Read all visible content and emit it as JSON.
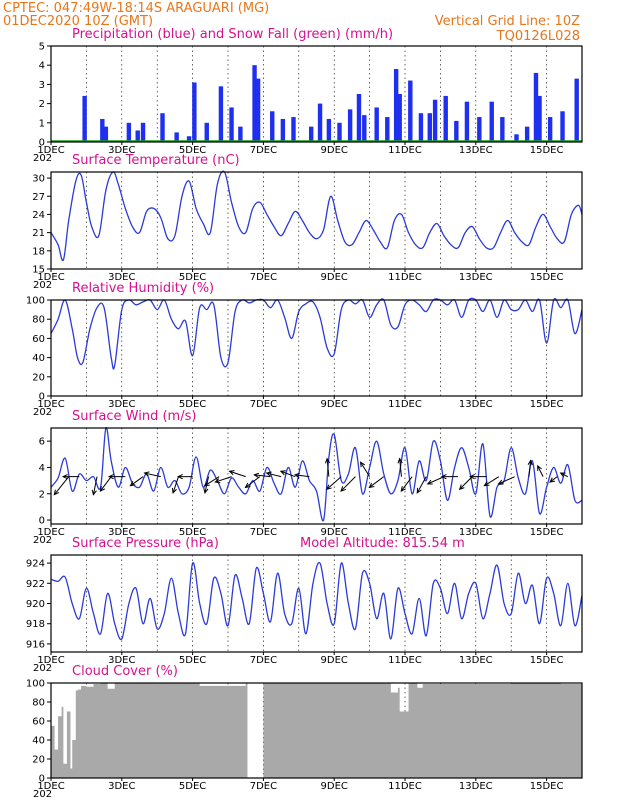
{
  "header": {
    "line1": "CPTEC:   047:49W-18:14S   ARAGUARI (MG)",
    "line2_left": "01DEC2020 10Z (GMT)",
    "line2_right": "Vertical Grid Line: 10Z",
    "line3_right": "TQ0126L028"
  },
  "colors": {
    "line": "#2b3bd6",
    "precip": "#1f2ff0",
    "snow": "#10a010",
    "cloud": "#a9a9a9",
    "header": "#e8761a",
    "title": "#d6118f"
  },
  "x_ticks": [
    "1DEC",
    "3DEC",
    "5DEC",
    "7DEC",
    "9DEC",
    "11DEC",
    "13DEC",
    "15DEC"
  ],
  "year_stub": "202",
  "chart_data": [
    {
      "type": "bar",
      "title": "Precipitation (blue) and Snow Fall (green) (mm/h)",
      "ylim": [
        0,
        5
      ],
      "yticks": [
        0,
        1,
        2,
        3,
        4,
        5
      ],
      "x_start_day": 1,
      "x_end_day": 16,
      "series": [
        {
          "name": "Precipitation",
          "x_days": [
            1.95,
            2.45,
            2.55,
            3.2,
            3.45,
            3.6,
            4.15,
            4.55,
            4.9,
            5.05,
            5.4,
            5.8,
            6.1,
            6.35,
            6.75,
            6.85,
            7.25,
            7.55,
            7.85,
            8.35,
            8.6,
            8.85,
            9.15,
            9.45,
            9.7,
            9.85,
            10.2,
            10.5,
            10.75,
            10.85,
            11.15,
            11.45,
            11.7,
            11.85,
            12.15,
            12.45,
            12.75,
            13.1,
            13.45,
            13.75,
            14.15,
            14.45,
            14.7,
            14.8,
            15.1,
            15.45,
            15.85
          ],
          "values": [
            2.4,
            1.2,
            0.8,
            1.0,
            0.6,
            1.0,
            1.5,
            0.5,
            0.3,
            3.1,
            1.0,
            2.9,
            1.8,
            0.8,
            4.0,
            3.3,
            1.6,
            1.2,
            1.3,
            0.8,
            2.0,
            1.2,
            1.0,
            1.7,
            2.5,
            1.4,
            1.8,
            1.3,
            3.8,
            2.5,
            3.2,
            1.5,
            1.5,
            2.2,
            2.4,
            1.1,
            2.1,
            1.3,
            2.1,
            1.3,
            0.4,
            0.8,
            3.6,
            2.4,
            1.3,
            1.6,
            3.3
          ]
        },
        {
          "name": "Snow Fall",
          "values": [
            0
          ]
        }
      ]
    },
    {
      "type": "line",
      "title": "Surface Temperature (nC)",
      "ylim": [
        15,
        31
      ],
      "yticks": [
        15,
        18,
        21,
        24,
        27,
        30
      ],
      "x_days": [
        1.0,
        1.2,
        1.35,
        1.5,
        1.7,
        1.85,
        2.0,
        2.15,
        2.35,
        2.55,
        2.75,
        2.9,
        3.1,
        3.3,
        3.5,
        3.7,
        3.9,
        4.1,
        4.3,
        4.5,
        4.7,
        4.9,
        5.1,
        5.3,
        5.5,
        5.7,
        5.9,
        6.1,
        6.3,
        6.5,
        6.7,
        6.9,
        7.1,
        7.3,
        7.5,
        7.7,
        7.9,
        8.1,
        8.3,
        8.5,
        8.7,
        8.9,
        9.1,
        9.3,
        9.5,
        9.7,
        9.9,
        10.1,
        10.3,
        10.5,
        10.7,
        10.9,
        11.1,
        11.3,
        11.5,
        11.7,
        11.9,
        12.1,
        12.3,
        12.5,
        12.7,
        12.9,
        13.1,
        13.3,
        13.5,
        13.7,
        13.9,
        14.1,
        14.3,
        14.5,
        14.7,
        14.9,
        15.1,
        15.3,
        15.5,
        15.7,
        15.9,
        16.0
      ],
      "values": [
        21,
        19,
        16.5,
        23,
        29.5,
        30.5,
        26,
        22,
        20.5,
        28,
        31,
        29,
        25,
        22,
        21,
        24.5,
        25,
        23.5,
        20,
        20.5,
        27,
        29.5,
        25,
        22.5,
        21,
        29,
        31,
        26,
        22,
        21,
        25,
        26,
        24,
        22,
        20.5,
        22.5,
        24.5,
        23,
        21,
        20,
        21.5,
        27,
        23,
        19.5,
        19,
        21,
        23,
        21.5,
        19.5,
        18.5,
        23,
        24,
        21,
        19,
        18.5,
        21,
        22.5,
        20.5,
        19,
        18.5,
        21,
        22,
        20,
        18.5,
        18.5,
        21,
        23,
        21,
        19.5,
        19,
        22,
        24,
        22,
        20,
        19.5,
        24,
        25.5,
        24
      ]
    },
    {
      "type": "line",
      "title": "Relative Humidity (%)",
      "ylim": [
        0,
        100
      ],
      "yticks": [
        0,
        20,
        40,
        60,
        80,
        100
      ],
      "x_days": [
        1.0,
        1.2,
        1.4,
        1.6,
        1.75,
        1.9,
        2.1,
        2.3,
        2.5,
        2.7,
        2.8,
        3.0,
        3.2,
        3.4,
        3.6,
        3.8,
        4.0,
        4.2,
        4.4,
        4.6,
        4.8,
        5.0,
        5.2,
        5.4,
        5.6,
        5.8,
        6.0,
        6.2,
        6.4,
        6.6,
        6.8,
        7.0,
        7.2,
        7.4,
        7.6,
        7.8,
        8.0,
        8.2,
        8.4,
        8.6,
        8.8,
        9.0,
        9.2,
        9.4,
        9.6,
        9.8,
        10.0,
        10.2,
        10.4,
        10.6,
        10.8,
        11.0,
        11.2,
        11.4,
        11.6,
        11.8,
        12.0,
        12.2,
        12.4,
        12.6,
        12.8,
        13.0,
        13.2,
        13.4,
        13.6,
        13.8,
        14.0,
        14.2,
        14.4,
        14.6,
        14.8,
        15.0,
        15.2,
        15.4,
        15.6,
        15.8,
        16.0
      ],
      "values": [
        65,
        80,
        100,
        70,
        40,
        35,
        70,
        92,
        92,
        40,
        32,
        90,
        100,
        95,
        98,
        100,
        90,
        100,
        80,
        70,
        78,
        42,
        92,
        90,
        95,
        40,
        35,
        88,
        100,
        97,
        100,
        100,
        92,
        100,
        82,
        60,
        88,
        96,
        98,
        82,
        50,
        44,
        90,
        100,
        96,
        100,
        82,
        95,
        100,
        74,
        72,
        95,
        100,
        95,
        88,
        100,
        100,
        95,
        100,
        82,
        100,
        100,
        88,
        100,
        82,
        100,
        90,
        90,
        100,
        88,
        100,
        55,
        100,
        92,
        100,
        65,
        90
      ]
    },
    {
      "type": "line",
      "title": "Surface Wind (m/s)",
      "ylim": [
        -0.3,
        7
      ],
      "yticks": [
        0,
        2,
        4,
        6
      ],
      "x_days": [
        1.0,
        1.2,
        1.4,
        1.6,
        1.8,
        2.0,
        2.2,
        2.4,
        2.55,
        2.7,
        2.9,
        3.1,
        3.3,
        3.5,
        3.7,
        3.9,
        4.1,
        4.3,
        4.5,
        4.7,
        4.9,
        5.1,
        5.3,
        5.5,
        5.7,
        5.9,
        6.1,
        6.3,
        6.5,
        6.7,
        6.9,
        7.1,
        7.3,
        7.5,
        7.7,
        7.9,
        8.1,
        8.3,
        8.5,
        8.7,
        8.85,
        9.0,
        9.2,
        9.4,
        9.6,
        9.8,
        10.0,
        10.2,
        10.4,
        10.6,
        10.8,
        11.0,
        11.2,
        11.4,
        11.6,
        11.8,
        12.0,
        12.2,
        12.4,
        12.6,
        12.8,
        13.0,
        13.2,
        13.4,
        13.6,
        13.8,
        14.0,
        14.2,
        14.4,
        14.6,
        14.8,
        15.0,
        15.2,
        15.4,
        15.6,
        15.8,
        16.0
      ],
      "values": [
        2.5,
        3.2,
        4.7,
        2.2,
        3.5,
        3.0,
        3.3,
        2.5,
        7.0,
        4.5,
        2.5,
        4.0,
        2.8,
        2.5,
        3.5,
        2.2,
        4.0,
        2.5,
        3.0,
        2.0,
        2.5,
        4.8,
        2.5,
        3.8,
        3.0,
        2.0,
        3.2,
        2.5,
        2.0,
        3.0,
        2.2,
        4.0,
        2.8,
        2.0,
        4.0,
        2.5,
        4.5,
        3.0,
        2.2,
        0.0,
        4.8,
        6.5,
        3.0,
        3.5,
        5.5,
        2.0,
        4.0,
        6.0,
        3.5,
        2.0,
        3.0,
        5.5,
        2.0,
        4.5,
        3.0,
        6.0,
        4.5,
        1.5,
        4.0,
        5.5,
        4.0,
        2.0,
        5.8,
        0.3,
        2.5,
        3.0,
        5.5,
        3.2,
        2.0,
        4.5,
        0.5,
        2.5,
        4.0,
        2.8,
        4.2,
        1.5,
        1.5
      ],
      "arrows": [
        {
          "day": 1.5,
          "u": -0.8,
          "v": -1.0
        },
        {
          "day": 1.8,
          "u": -0.9,
          "v": 0.0
        },
        {
          "day": 2.3,
          "u": -0.2,
          "v": -1.0
        },
        {
          "day": 2.7,
          "u": -0.6,
          "v": -0.8
        },
        {
          "day": 3.1,
          "u": -0.9,
          "v": 0.0
        },
        {
          "day": 3.6,
          "u": -0.7,
          "v": -0.5
        },
        {
          "day": 4.1,
          "u": -0.9,
          "v": 0.2
        },
        {
          "day": 4.6,
          "u": -0.3,
          "v": -0.9
        },
        {
          "day": 5.0,
          "u": -0.8,
          "v": 0.0
        },
        {
          "day": 5.45,
          "u": -0.2,
          "v": -0.9
        },
        {
          "day": 5.75,
          "u": -0.8,
          "v": -0.5
        },
        {
          "day": 6.1,
          "u": -0.9,
          "v": -0.3
        },
        {
          "day": 6.5,
          "u": -0.9,
          "v": 0.3
        },
        {
          "day": 6.9,
          "u": -0.8,
          "v": -0.6
        },
        {
          "day": 7.2,
          "u": -0.9,
          "v": 0.1
        },
        {
          "day": 7.5,
          "u": -0.8,
          "v": 0.2
        },
        {
          "day": 7.9,
          "u": -0.8,
          "v": 0.3
        },
        {
          "day": 8.3,
          "u": -0.8,
          "v": 0.1
        },
        {
          "day": 8.85,
          "u": -0.1,
          "v": 1.0
        },
        {
          "day": 9.2,
          "u": -0.8,
          "v": -0.7
        },
        {
          "day": 9.6,
          "u": -0.8,
          "v": -0.8
        },
        {
          "day": 10.0,
          "u": -0.5,
          "v": 0.8
        },
        {
          "day": 10.4,
          "u": -0.8,
          "v": -0.6
        },
        {
          "day": 10.9,
          "u": -0.1,
          "v": 1.0
        },
        {
          "day": 11.2,
          "u": -0.6,
          "v": -0.8
        },
        {
          "day": 11.6,
          "u": -0.5,
          "v": -0.9
        },
        {
          "day": 12.1,
          "u": -0.9,
          "v": -0.4
        },
        {
          "day": 12.5,
          "u": -0.9,
          "v": 0.0
        },
        {
          "day": 12.9,
          "u": -0.7,
          "v": -0.7
        },
        {
          "day": 13.3,
          "u": -0.9,
          "v": 0.0
        },
        {
          "day": 13.65,
          "u": -0.8,
          "v": -0.5
        },
        {
          "day": 14.1,
          "u": -0.9,
          "v": -0.4
        },
        {
          "day": 14.5,
          "u": 0.1,
          "v": 0.9
        },
        {
          "day": 14.9,
          "u": -0.3,
          "v": 0.6
        },
        {
          "day": 15.3,
          "u": -0.4,
          "v": -0.3
        },
        {
          "day": 15.6,
          "u": -0.4,
          "v": 0.2
        }
      ]
    },
    {
      "type": "line",
      "title": "Surface Pressure (hPa)",
      "annotation": "Model Altitude: 815.54 m",
      "ylim": [
        915.2,
        924.8
      ],
      "yticks": [
        916,
        918,
        920,
        922,
        924
      ],
      "x_days": [
        1.0,
        1.2,
        1.4,
        1.6,
        1.8,
        2.0,
        2.2,
        2.4,
        2.6,
        2.8,
        3.0,
        3.2,
        3.4,
        3.6,
        3.8,
        4.0,
        4.2,
        4.4,
        4.6,
        4.8,
        5.0,
        5.2,
        5.4,
        5.6,
        5.8,
        6.0,
        6.2,
        6.4,
        6.6,
        6.8,
        7.0,
        7.2,
        7.4,
        7.6,
        7.8,
        8.0,
        8.2,
        8.4,
        8.6,
        8.8,
        9.0,
        9.2,
        9.4,
        9.6,
        9.8,
        10.0,
        10.2,
        10.4,
        10.6,
        10.8,
        11.0,
        11.2,
        11.4,
        11.6,
        11.8,
        12.0,
        12.2,
        12.4,
        12.6,
        12.8,
        13.0,
        13.2,
        13.4,
        13.6,
        13.8,
        14.0,
        14.2,
        14.4,
        14.6,
        14.8,
        15.0,
        15.2,
        15.4,
        15.6,
        15.8,
        16.0
      ],
      "values": [
        922.4,
        922.2,
        922.6,
        920.0,
        918.5,
        921.5,
        919.0,
        917.0,
        921.0,
        918.0,
        916.5,
        920.0,
        921.5,
        918.0,
        920.5,
        917.5,
        919.0,
        922.5,
        919.0,
        917.0,
        924.0,
        920.0,
        918.0,
        922.5,
        921.0,
        917.8,
        922.8,
        920.5,
        918.0,
        923.5,
        921.0,
        918.2,
        923.0,
        919.0,
        918.0,
        921.5,
        917.0,
        922.0,
        924.0,
        920.0,
        918.0,
        924.0,
        920.0,
        917.5,
        923.0,
        922.0,
        918.5,
        921.0,
        916.5,
        921.5,
        919.0,
        917.0,
        920.5,
        916.8,
        922.0,
        921.5,
        919.0,
        922.0,
        918.5,
        921.0,
        922.0,
        918.5,
        921.0,
        923.8,
        920.0,
        919.0,
        923.0,
        920.0,
        921.8,
        918.0,
        922.5,
        921.0,
        917.8,
        922.0,
        917.8,
        920.8
      ]
    },
    {
      "type": "bar",
      "title": "Cloud Cover (%)",
      "ylim": [
        0,
        100
      ],
      "yticks": [
        0,
        20,
        40,
        60,
        80,
        100
      ],
      "x_days": [
        1.0,
        1.1,
        1.2,
        1.3,
        1.35,
        1.45,
        1.55,
        1.6,
        1.7,
        1.75,
        1.85,
        2.0,
        2.2,
        2.4,
        2.6,
        2.8,
        3.0,
        5.0,
        5.2,
        6.5,
        6.55,
        7.0,
        9.0,
        10.6,
        10.8,
        10.85,
        11.1,
        11.35,
        11.5,
        14.0,
        15.4,
        16.0
      ],
      "values": [
        55,
        30,
        65,
        75,
        15,
        70,
        10,
        40,
        92,
        93,
        97,
        96,
        99,
        100,
        94,
        100,
        100,
        100,
        97,
        100,
        0,
        100,
        100,
        90,
        95,
        70,
        100,
        95,
        99,
        100,
        99,
        100
      ]
    }
  ]
}
